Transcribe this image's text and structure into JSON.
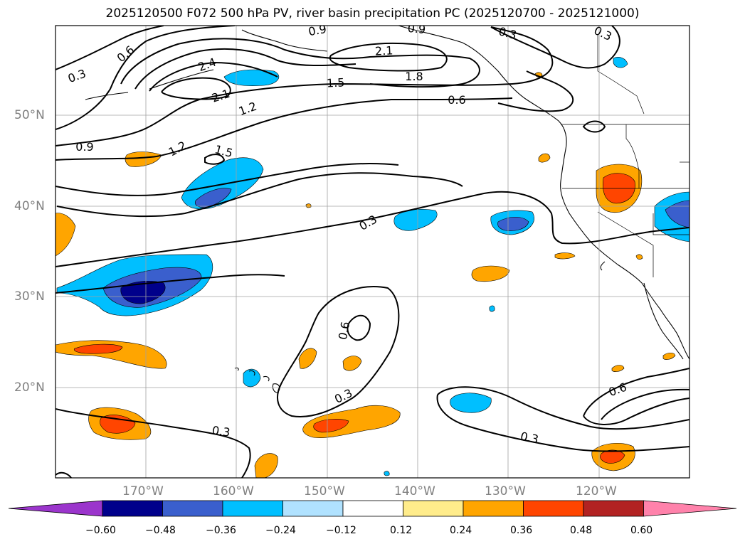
{
  "title": "2025120500 F072 500 hPa PV, river basin precipitation PC (2025120700 - 2025121000)",
  "lat_labels": [
    "50°N",
    "40°N",
    "30°N",
    "20°N"
  ],
  "lon_labels": [
    "170°W",
    "160°W",
    "150°W",
    "140°W",
    "130°W",
    "120°W"
  ],
  "colorbar": {
    "levels": [
      "−0.60",
      "−0.48",
      "−0.36",
      "−0.24",
      "−0.12",
      "0.12",
      "0.24",
      "0.36",
      "0.48",
      "0.60"
    ],
    "colors": [
      "#9b35cc",
      "#00008b",
      "#3a5fcd",
      "#00bfff",
      "#b0e2ff",
      "#ffffff",
      "#ffec8b",
      "#ffa500",
      "#ff4500",
      "#b22222",
      "#ff82ab"
    ]
  },
  "contour_labels": [
    "0.3",
    "0.6",
    "2.4",
    "0.9",
    "0.9",
    "0.3",
    "0.3",
    "2.1",
    "1.8",
    "1.5",
    "2.1",
    "1.2",
    "0.6",
    "0.9",
    "1.2",
    "1.5",
    "0.3",
    "0.6",
    "0.3",
    "0.6",
    "0.3",
    "0.3"
  ]
}
